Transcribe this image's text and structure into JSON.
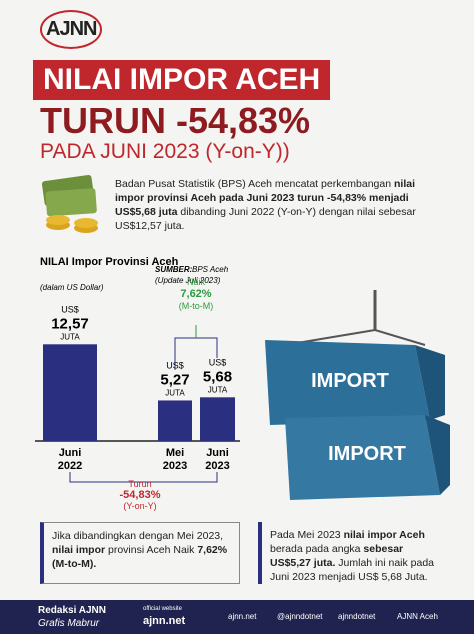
{
  "logo": "AJNN",
  "header": {
    "title": "NILAI IMPOR ACEH",
    "headline": "TURUN -54,83%",
    "subtitle": "PADA JUNI 2023 (Y-on-Y))"
  },
  "intro": [
    {
      "text": "Badan Pusat Statistik (BPS) Aceh mencatat perkembangan ",
      "bold": false
    },
    {
      "text": "nilai impor provinsi Aceh pada Juni 2023 turun -54,83% menjadi US$5,68 juta",
      "bold": true
    },
    {
      "text": " dibanding Juni 2022 (Y-on-Y) dengan nilai sebesar US$12,57 juta.",
      "bold": false
    }
  ],
  "chart_data": {
    "type": "bar",
    "title": "NILAI Impor Provinsi Aceh",
    "subtitle": "(dalam US Dollar)",
    "source_label": "SUMBER:",
    "source": "BPS Aceh",
    "source_note": "(Update Juli 2023)",
    "categories": [
      "Juni\n2022",
      "Mei\n2023",
      "Juni\n2023"
    ],
    "values": [
      12.57,
      5.27,
      5.68
    ],
    "value_labels": [
      "12,57",
      "5,27",
      "5,68"
    ],
    "value_prefix": "US$",
    "value_unit": "JUTA",
    "color": "#2b2f7f",
    "ylim": [
      0,
      13
    ],
    "annotations": [
      {
        "lines": [
          "Naik",
          "7,62%",
          "(M-to-M)"
        ],
        "color": "#2e9a3e"
      },
      {
        "lines": [
          "Turun",
          "-54,83%",
          "(Y-on-Y)"
        ],
        "color": "#c0272d"
      }
    ]
  },
  "image_text": "IMPORT",
  "notes": [
    [
      {
        "text": "Jika dibandingkan dengan Mei 2023, ",
        "bold": false
      },
      {
        "text": "nilai impor",
        "bold": true
      },
      {
        "text": " provinsi Aceh Naik ",
        "bold": false
      },
      {
        "text": "7,62% (M-to-M).",
        "bold": true
      }
    ],
    [
      {
        "text": "Pada Mei 2023 ",
        "bold": false
      },
      {
        "text": "nilai impor Aceh",
        "bold": true
      },
      {
        "text": " berada pada angka ",
        "bold": false
      },
      {
        "text": "sebesar US$5,27 juta.",
        "bold": true
      },
      {
        "text": " Jumlah ini naik pada Juni 2023 menjadi US$ 5,68 Juta.",
        "bold": false
      }
    ]
  ],
  "footer": {
    "credit": "Redaksi AJNN",
    "designer": "Grafis Mabrur",
    "website_label": "official website",
    "website": "ajnn.net",
    "links": [
      "ajnn.net",
      "@ajnndotnet",
      "ajnndotnet",
      "AJNN Aceh"
    ]
  }
}
